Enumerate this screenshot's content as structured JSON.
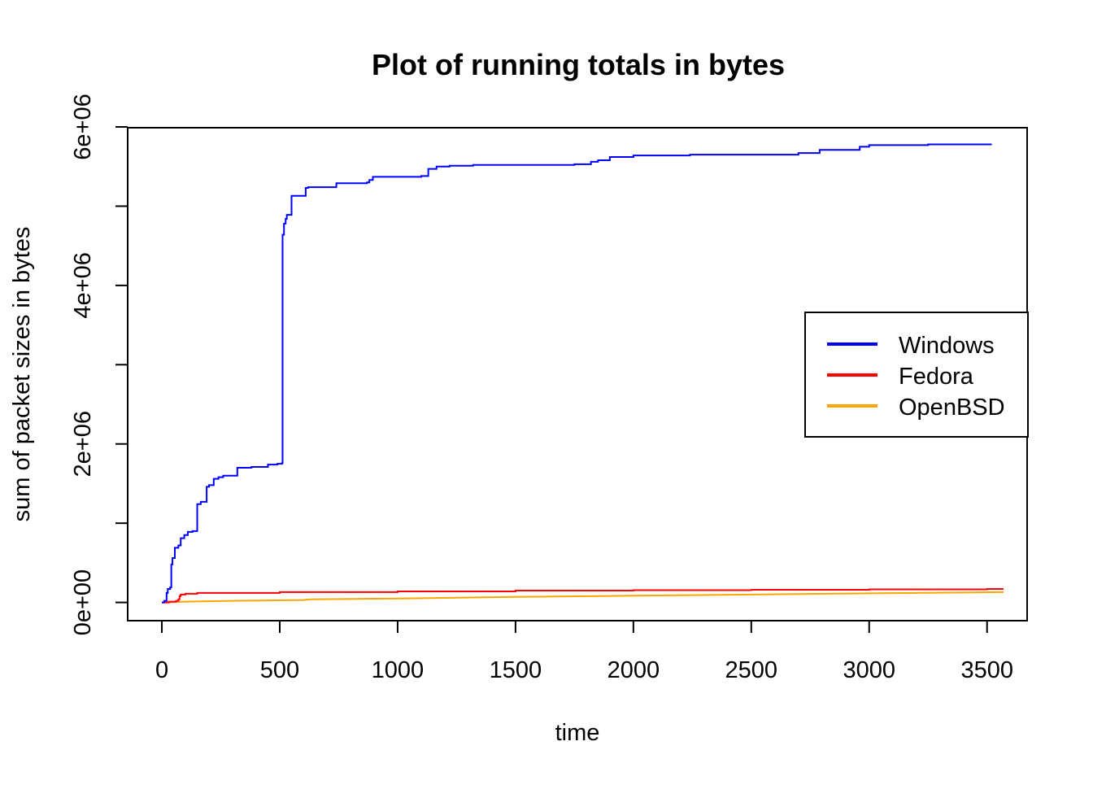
{
  "chart_data": {
    "type": "line",
    "title": "Plot of running totals in bytes",
    "xlabel": "time",
    "ylabel": "sum of packet sizes in bytes",
    "xlim": [
      -145,
      3670
    ],
    "ylim": [
      -230000,
      5990000
    ],
    "x_ticks": [
      0,
      500,
      1000,
      1500,
      2000,
      2500,
      3000,
      3500
    ],
    "x_tick_labels": [
      "0",
      "500",
      "1000",
      "1500",
      "2000",
      "2500",
      "3000",
      "3500"
    ],
    "y_ticks": [
      0,
      1000000,
      2000000,
      3000000,
      4000000,
      5000000,
      6000000
    ],
    "y_tick_labels": [
      "0e+00",
      "2e+06",
      "4e+06",
      "6e+06"
    ],
    "y_labeled_ticks": [
      0,
      2000000,
      4000000,
      6000000
    ],
    "grid": false,
    "legend_position": "right",
    "series": [
      {
        "name": "Windows",
        "color": "#0000ff",
        "step": true,
        "points": [
          [
            0,
            0
          ],
          [
            10,
            20000
          ],
          [
            20,
            120000
          ],
          [
            25,
            170000
          ],
          [
            35,
            190000
          ],
          [
            40,
            480000
          ],
          [
            45,
            560000
          ],
          [
            55,
            690000
          ],
          [
            70,
            720000
          ],
          [
            80,
            810000
          ],
          [
            95,
            850000
          ],
          [
            110,
            890000
          ],
          [
            130,
            900000
          ],
          [
            150,
            1240000
          ],
          [
            165,
            1270000
          ],
          [
            190,
            1460000
          ],
          [
            200,
            1480000
          ],
          [
            220,
            1560000
          ],
          [
            240,
            1580000
          ],
          [
            260,
            1600000
          ],
          [
            320,
            1700000
          ],
          [
            380,
            1710000
          ],
          [
            450,
            1740000
          ],
          [
            490,
            1750000
          ],
          [
            510,
            1760000
          ],
          [
            512,
            4640000
          ],
          [
            518,
            4780000
          ],
          [
            525,
            4840000
          ],
          [
            530,
            4890000
          ],
          [
            550,
            5130000
          ],
          [
            610,
            5230000
          ],
          [
            620,
            5240000
          ],
          [
            740,
            5290000
          ],
          [
            870,
            5300000
          ],
          [
            880,
            5330000
          ],
          [
            895,
            5370000
          ],
          [
            1100,
            5380000
          ],
          [
            1130,
            5470000
          ],
          [
            1165,
            5500000
          ],
          [
            1220,
            5510000
          ],
          [
            1320,
            5520000
          ],
          [
            1750,
            5530000
          ],
          [
            1820,
            5560000
          ],
          [
            1850,
            5580000
          ],
          [
            1900,
            5620000
          ],
          [
            2000,
            5640000
          ],
          [
            2240,
            5650000
          ],
          [
            2700,
            5670000
          ],
          [
            2790,
            5710000
          ],
          [
            2960,
            5750000
          ],
          [
            3000,
            5770000
          ],
          [
            3250,
            5780000
          ],
          [
            3520,
            5780000
          ]
        ]
      },
      {
        "name": "Fedora",
        "color": "#ff0000",
        "step": true,
        "points": [
          [
            0,
            0
          ],
          [
            30,
            10000
          ],
          [
            60,
            20000
          ],
          [
            70,
            40000
          ],
          [
            75,
            80000
          ],
          [
            80,
            100000
          ],
          [
            100,
            110000
          ],
          [
            150,
            120000
          ],
          [
            500,
            130000
          ],
          [
            1000,
            140000
          ],
          [
            1500,
            150000
          ],
          [
            2000,
            155000
          ],
          [
            2500,
            160000
          ],
          [
            3000,
            165000
          ],
          [
            3500,
            170000
          ],
          [
            3570,
            170000
          ]
        ]
      },
      {
        "name": "OpenBSD",
        "color": "#ffa500",
        "step": false,
        "points": [
          [
            0,
            0
          ],
          [
            100,
            10000
          ],
          [
            300,
            20000
          ],
          [
            600,
            30000
          ],
          [
            630,
            40000
          ],
          [
            1000,
            50000
          ],
          [
            1500,
            70000
          ],
          [
            2000,
            85000
          ],
          [
            2500,
            100000
          ],
          [
            3000,
            115000
          ],
          [
            3570,
            130000
          ]
        ]
      }
    ]
  }
}
